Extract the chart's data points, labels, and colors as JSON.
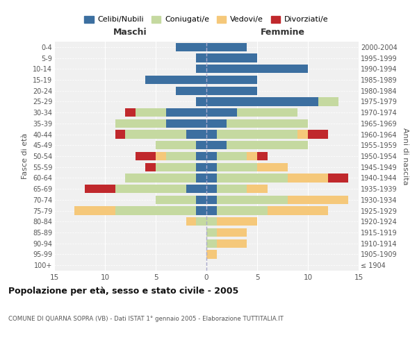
{
  "age_groups": [
    "100+",
    "95-99",
    "90-94",
    "85-89",
    "80-84",
    "75-79",
    "70-74",
    "65-69",
    "60-64",
    "55-59",
    "50-54",
    "45-49",
    "40-44",
    "35-39",
    "30-34",
    "25-29",
    "20-24",
    "15-19",
    "10-14",
    "5-9",
    "0-4"
  ],
  "birth_years": [
    "≤ 1904",
    "1905-1909",
    "1910-1914",
    "1915-1919",
    "1920-1924",
    "1925-1929",
    "1930-1934",
    "1935-1939",
    "1940-1944",
    "1945-1949",
    "1950-1954",
    "1955-1959",
    "1960-1964",
    "1965-1969",
    "1970-1974",
    "1975-1979",
    "1980-1984",
    "1985-1989",
    "1990-1994",
    "1995-1999",
    "2000-2004"
  ],
  "colors": {
    "celibi": "#3c6fa0",
    "coniugati": "#c5d9a0",
    "vedovi": "#f5c87a",
    "divorziati": "#c0282c"
  },
  "males": {
    "celibi": [
      0,
      0,
      0,
      0,
      0,
      1,
      1,
      2,
      1,
      1,
      1,
      1,
      2,
      4,
      4,
      1,
      3,
      6,
      1,
      1,
      3
    ],
    "coniugati": [
      0,
      0,
      0,
      0,
      1,
      8,
      4,
      7,
      7,
      4,
      3,
      4,
      6,
      5,
      3,
      0,
      0,
      0,
      0,
      0,
      0
    ],
    "vedovi": [
      0,
      0,
      0,
      0,
      1,
      4,
      0,
      0,
      0,
      0,
      1,
      0,
      0,
      0,
      0,
      0,
      0,
      0,
      0,
      0,
      0
    ],
    "divorziati": [
      0,
      0,
      0,
      0,
      0,
      0,
      0,
      3,
      0,
      1,
      2,
      0,
      1,
      0,
      1,
      0,
      0,
      0,
      0,
      0,
      0
    ]
  },
  "females": {
    "celibi": [
      0,
      0,
      0,
      0,
      0,
      1,
      1,
      1,
      1,
      1,
      1,
      2,
      1,
      2,
      3,
      11,
      5,
      5,
      10,
      5,
      4
    ],
    "coniugati": [
      0,
      0,
      1,
      1,
      1,
      5,
      7,
      3,
      7,
      4,
      3,
      8,
      8,
      8,
      6,
      2,
      0,
      0,
      0,
      0,
      0
    ],
    "vedovi": [
      0,
      1,
      3,
      3,
      4,
      6,
      6,
      2,
      4,
      3,
      1,
      0,
      1,
      0,
      0,
      0,
      0,
      0,
      0,
      0,
      0
    ],
    "divorziati": [
      0,
      0,
      0,
      0,
      0,
      0,
      0,
      0,
      2,
      0,
      1,
      0,
      2,
      0,
      0,
      0,
      0,
      0,
      0,
      0,
      0
    ]
  },
  "title": "Popolazione per età, sesso e stato civile - 2005",
  "subtitle": "COMUNE DI QUARNA SOPRA (VB) - Dati ISTAT 1° gennaio 2005 - Elaborazione TUTTITALIA.IT",
  "xlabel_left": "Maschi",
  "xlabel_right": "Femmine",
  "ylabel_left": "Fasce di età",
  "ylabel_right": "Anni di nascita",
  "xlim": 15,
  "legend_labels": [
    "Celibi/Nubili",
    "Coniugati/e",
    "Vedovi/e",
    "Divorziati/e"
  ],
  "background_color": "#ffffff",
  "plot_bg_color": "#f0f0f0",
  "grid_color": "#ffffff"
}
